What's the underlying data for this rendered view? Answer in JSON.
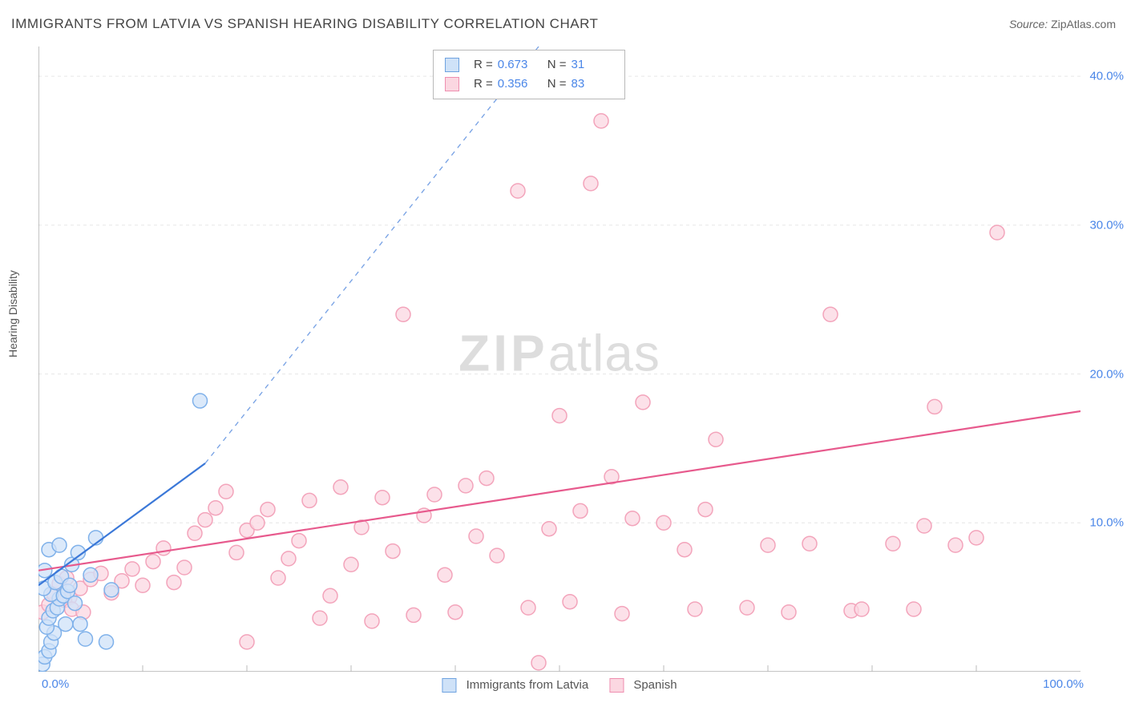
{
  "title": "IMMIGRANTS FROM LATVIA VS SPANISH HEARING DISABILITY CORRELATION CHART",
  "source_label": "Source:",
  "source_value": "ZipAtlas.com",
  "ylabel": "Hearing Disability",
  "watermark_a": "ZIP",
  "watermark_b": "atlas",
  "chart": {
    "type": "scatter",
    "background_color": "#ffffff",
    "grid_color": "#e6e6e6",
    "axis_color": "#888888",
    "tick_color": "#bbbbbb",
    "label_color": "#4a86e8",
    "text_color": "#555555",
    "xlim": [
      0,
      100
    ],
    "ylim": [
      0,
      42
    ],
    "ytick_step": 10,
    "ytick_labels": [
      "10.0%",
      "20.0%",
      "30.0%",
      "40.0%"
    ],
    "xtick_labels": [
      "0.0%",
      "100.0%"
    ],
    "xtick_minor_step": 10,
    "marker_radius": 9,
    "marker_stroke_width": 1.5,
    "trend_line_width": 2.2,
    "series": [
      {
        "name": "Immigrants from Latvia",
        "short": "latvia",
        "fill": "#cfe2f8",
        "stroke": "#7fb1ea",
        "swatch_fill": "#cfe2f8",
        "swatch_stroke": "#6fa3e0",
        "r_value": "0.673",
        "n_value": "31",
        "trend": {
          "x1": 0,
          "y1": 5.8,
          "x2": 16,
          "y2": 14.0,
          "dash_to_x": 48,
          "dash_to_y": 42,
          "color": "#3b78d8"
        },
        "points": [
          [
            0.4,
            0.5
          ],
          [
            0.6,
            1.0
          ],
          [
            1.0,
            1.4
          ],
          [
            1.2,
            2.0
          ],
          [
            1.5,
            2.6
          ],
          [
            0.8,
            3.0
          ],
          [
            1.0,
            3.6
          ],
          [
            1.4,
            4.1
          ],
          [
            1.8,
            4.3
          ],
          [
            2.0,
            4.9
          ],
          [
            1.2,
            5.2
          ],
          [
            0.5,
            5.6
          ],
          [
            2.4,
            5.1
          ],
          [
            2.8,
            5.4
          ],
          [
            1.6,
            6.0
          ],
          [
            2.2,
            6.4
          ],
          [
            0.6,
            6.8
          ],
          [
            3.0,
            5.8
          ],
          [
            3.5,
            4.6
          ],
          [
            4.0,
            3.2
          ],
          [
            4.5,
            2.2
          ],
          [
            5.0,
            6.5
          ],
          [
            3.2,
            7.2
          ],
          [
            3.8,
            8.0
          ],
          [
            6.5,
            2.0
          ],
          [
            2.6,
            3.2
          ],
          [
            1.0,
            8.2
          ],
          [
            2.0,
            8.5
          ],
          [
            5.5,
            9.0
          ],
          [
            7.0,
            5.5
          ],
          [
            15.5,
            18.2
          ]
        ]
      },
      {
        "name": "Spanish",
        "short": "spanish",
        "fill": "#fbd7e1",
        "stroke": "#f3a4bb",
        "swatch_fill": "#fbd7e1",
        "swatch_stroke": "#ef8fb0",
        "r_value": "0.356",
        "n_value": "83",
        "trend": {
          "x1": 0,
          "y1": 6.8,
          "x2": 100,
          "y2": 17.5,
          "color": "#e75a8d"
        },
        "points": [
          [
            3,
            5.0
          ],
          [
            4,
            5.6
          ],
          [
            5,
            6.2
          ],
          [
            6,
            6.6
          ],
          [
            7,
            5.3
          ],
          [
            8,
            6.1
          ],
          [
            9,
            6.9
          ],
          [
            10,
            5.8
          ],
          [
            11,
            7.4
          ],
          [
            12,
            8.3
          ],
          [
            13,
            6.0
          ],
          [
            14,
            7.0
          ],
          [
            15,
            9.3
          ],
          [
            16,
            10.2
          ],
          [
            17,
            11.0
          ],
          [
            18,
            12.1
          ],
          [
            19,
            8.0
          ],
          [
            20,
            9.5
          ],
          [
            21,
            10.0
          ],
          [
            22,
            10.9
          ],
          [
            23,
            6.3
          ],
          [
            24,
            7.6
          ],
          [
            25,
            8.8
          ],
          [
            26,
            11.5
          ],
          [
            27,
            3.6
          ],
          [
            28,
            5.1
          ],
          [
            29,
            12.4
          ],
          [
            30,
            7.2
          ],
          [
            31,
            9.7
          ],
          [
            32,
            3.4
          ],
          [
            33,
            11.7
          ],
          [
            34,
            8.1
          ],
          [
            35,
            24.0
          ],
          [
            36,
            3.8
          ],
          [
            37,
            10.5
          ],
          [
            38,
            11.9
          ],
          [
            39,
            6.5
          ],
          [
            40,
            4.0
          ],
          [
            41,
            12.5
          ],
          [
            42,
            9.1
          ],
          [
            43,
            13.0
          ],
          [
            44,
            7.8
          ],
          [
            46,
            32.3
          ],
          [
            47,
            4.3
          ],
          [
            48,
            0.6
          ],
          [
            49,
            9.6
          ],
          [
            50,
            17.2
          ],
          [
            51,
            4.7
          ],
          [
            52,
            10.8
          ],
          [
            53,
            32.8
          ],
          [
            54,
            37.0
          ],
          [
            55,
            13.1
          ],
          [
            56,
            3.9
          ],
          [
            57,
            10.3
          ],
          [
            58,
            18.1
          ],
          [
            60,
            10.0
          ],
          [
            62,
            8.2
          ],
          [
            63,
            4.2
          ],
          [
            64,
            10.9
          ],
          [
            65,
            15.6
          ],
          [
            68,
            4.3
          ],
          [
            70,
            8.5
          ],
          [
            72,
            4.0
          ],
          [
            74,
            8.6
          ],
          [
            76,
            24.0
          ],
          [
            78,
            4.1
          ],
          [
            79,
            4.2
          ],
          [
            82,
            8.6
          ],
          [
            84,
            4.2
          ],
          [
            85,
            9.8
          ],
          [
            86,
            17.8
          ],
          [
            88,
            8.5
          ],
          [
            90,
            9.0
          ],
          [
            92,
            29.5
          ],
          [
            0.4,
            4.0
          ],
          [
            1,
            4.5
          ],
          [
            1.5,
            5.2
          ],
          [
            2,
            5.9
          ],
          [
            2.5,
            4.8
          ],
          [
            2.7,
            6.3
          ],
          [
            3.2,
            4.2
          ],
          [
            4.3,
            4.0
          ],
          [
            20,
            2.0
          ]
        ]
      }
    ]
  },
  "bottom_legend": [
    {
      "label": "Immigrants from Latvia",
      "series": 0
    },
    {
      "label": "Spanish",
      "series": 1
    }
  ]
}
